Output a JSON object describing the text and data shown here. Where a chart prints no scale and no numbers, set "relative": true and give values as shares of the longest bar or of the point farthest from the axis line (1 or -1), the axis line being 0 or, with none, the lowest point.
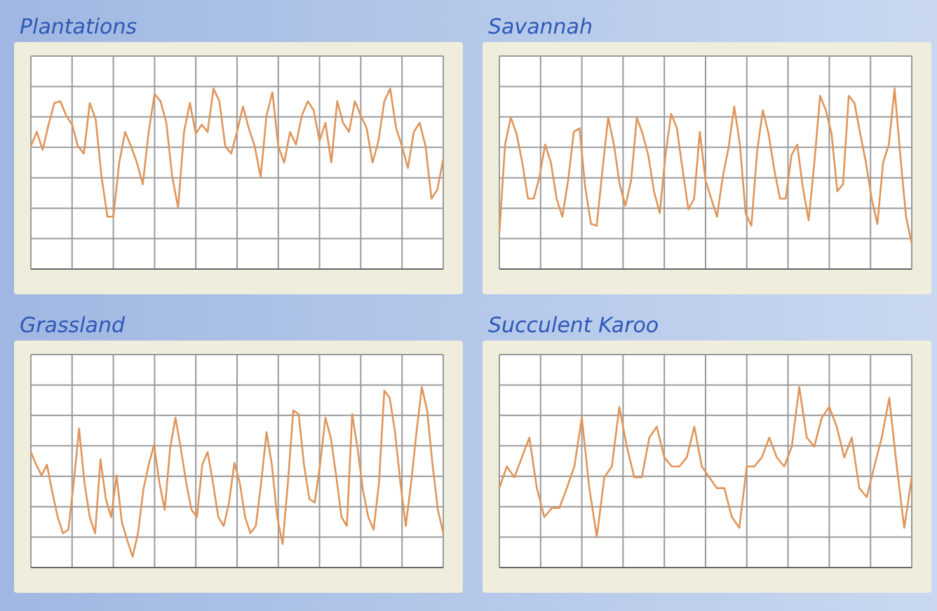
{
  "chart_data": [
    {
      "type": "line",
      "title": "Plantations",
      "relative": true,
      "grid": true,
      "categories": [
        null,
        null,
        null,
        null,
        null,
        null,
        null,
        null,
        null,
        null,
        null,
        null,
        null,
        null,
        null,
        null,
        null,
        null,
        null,
        null,
        null,
        null,
        null,
        null,
        null,
        null,
        null,
        null,
        null,
        null,
        null,
        null,
        null,
        null,
        null,
        null,
        null,
        null,
        null,
        null,
        null,
        null,
        null,
        null,
        null,
        null,
        null,
        null,
        null,
        null,
        null,
        null,
        null,
        null,
        null,
        null,
        null,
        null,
        null,
        null,
        null,
        null,
        null,
        null,
        null,
        null,
        null,
        null,
        null,
        null,
        null
      ],
      "series": [
        {
          "color": "#e0955a",
          "values": [
            0.68,
            0.76,
            0.66,
            0.8,
            0.92,
            0.93,
            0.85,
            0.8,
            0.68,
            0.64,
            0.92,
            0.83,
            0.51,
            0.29,
            0.29,
            0.59,
            0.76,
            0.68,
            0.59,
            0.47,
            0.76,
            0.97,
            0.93,
            0.81,
            0.51,
            0.34,
            0.76,
            0.92,
            0.75,
            0.8,
            0.76,
            1,
            0.93,
            0.68,
            0.64,
            0.76,
            0.9,
            0.78,
            0.68,
            0.51,
            0.85,
            0.98,
            0.68,
            0.59,
            0.76,
            0.69,
            0.85,
            0.93,
            0.88,
            0.71,
            0.81,
            0.59,
            0.93,
            0.81,
            0.76,
            0.93,
            0.85,
            0.78,
            0.59,
            0.71,
            0.93,
            1,
            0.78,
            0.68,
            0.56,
            0.76,
            0.81,
            0.68,
            0.39,
            0.44,
            0.61
          ]
        }
      ]
    },
    {
      "type": "line",
      "title": "Savannah",
      "relative": true,
      "grid": true,
      "categories": [
        null,
        null,
        null,
        null,
        null,
        null,
        null,
        null,
        null,
        null,
        null,
        null,
        null,
        null,
        null,
        null,
        null,
        null,
        null,
        null,
        null,
        null,
        null,
        null,
        null,
        null,
        null,
        null,
        null,
        null,
        null,
        null,
        null,
        null,
        null,
        null,
        null,
        null,
        null,
        null,
        null,
        null,
        null,
        null,
        null,
        null,
        null,
        null,
        null,
        null,
        null,
        null,
        null,
        null,
        null,
        null,
        null,
        null,
        null,
        null,
        null,
        null,
        null,
        null,
        null,
        null,
        null,
        null,
        null,
        null,
        null,
        null,
        null
      ],
      "series": [
        {
          "color": "#e0955a",
          "values": [
            0.2,
            0.69,
            0.84,
            0.75,
            0.59,
            0.39,
            0.39,
            0.51,
            0.69,
            0.59,
            0.39,
            0.29,
            0.49,
            0.76,
            0.78,
            0.45,
            0.25,
            0.24,
            0.55,
            0.84,
            0.69,
            0.47,
            0.35,
            0.49,
            0.84,
            0.75,
            0.63,
            0.43,
            0.31,
            0.63,
            0.86,
            0.78,
            0.55,
            0.33,
            0.39,
            0.76,
            0.49,
            0.39,
            0.29,
            0.51,
            0.67,
            0.9,
            0.69,
            0.31,
            0.24,
            0.65,
            0.88,
            0.75,
            0.55,
            0.39,
            0.39,
            0.63,
            0.69,
            0.45,
            0.27,
            0.59,
            0.96,
            0.88,
            0.75,
            0.43,
            0.47,
            0.96,
            0.92,
            0.75,
            0.59,
            0.39,
            0.25,
            0.59,
            0.69,
            1,
            0.63,
            0.29,
            0.14
          ]
        }
      ]
    },
    {
      "type": "line",
      "title": "Grassland",
      "relative": true,
      "grid": true,
      "categories": [
        null,
        null,
        null,
        null,
        null,
        null,
        null,
        null,
        null,
        null,
        null,
        null,
        null,
        null,
        null,
        null,
        null,
        null,
        null,
        null,
        null,
        null,
        null,
        null,
        null,
        null,
        null,
        null,
        null,
        null,
        null,
        null,
        null,
        null,
        null,
        null,
        null,
        null,
        null,
        null,
        null,
        null,
        null,
        null,
        null,
        null,
        null,
        null,
        null,
        null,
        null,
        null,
        null,
        null,
        null,
        null,
        null,
        null,
        null,
        null,
        null,
        null,
        null,
        null,
        null,
        null,
        null,
        null,
        null,
        null,
        null,
        null,
        null,
        null,
        null,
        null,
        null,
        null
      ],
      "series": [
        {
          "color": "#e0955a",
          "values": [
            0.64,
            0.57,
            0.51,
            0.57,
            0.42,
            0.28,
            0.19,
            0.21,
            0.47,
            0.77,
            0.47,
            0.28,
            0.19,
            0.6,
            0.38,
            0.28,
            0.51,
            0.25,
            0.15,
            0.06,
            0.19,
            0.43,
            0.57,
            0.68,
            0.47,
            0.32,
            0.66,
            0.83,
            0.66,
            0.47,
            0.32,
            0.28,
            0.57,
            0.64,
            0.47,
            0.28,
            0.23,
            0.36,
            0.58,
            0.47,
            0.28,
            0.19,
            0.23,
            0.47,
            0.75,
            0.57,
            0.28,
            0.13,
            0.47,
            0.87,
            0.85,
            0.57,
            0.38,
            0.36,
            0.57,
            0.83,
            0.72,
            0.51,
            0.28,
            0.23,
            0.85,
            0.66,
            0.43,
            0.28,
            0.21,
            0.47,
            0.98,
            0.94,
            0.75,
            0.47,
            0.23,
            0.47,
            0.75,
            1,
            0.87,
            0.57,
            0.32,
            0.19
          ]
        }
      ]
    },
    {
      "type": "line",
      "title": "Succulent Karoo",
      "relative": true,
      "grid": true,
      "categories": [
        null,
        null,
        null,
        null,
        null,
        null,
        null,
        null,
        null,
        null,
        null,
        null,
        null,
        null,
        null,
        null,
        null,
        null,
        null,
        null,
        null,
        null,
        null,
        null,
        null,
        null,
        null,
        null,
        null,
        null,
        null,
        null,
        null,
        null,
        null,
        null,
        null,
        null,
        null,
        null,
        null,
        null,
        null,
        null,
        null,
        null,
        null,
        null,
        null,
        null,
        null,
        null,
        null,
        null,
        null,
        null
      ],
      "series": [
        {
          "color": "#e0955a",
          "values": [
            0.44,
            0.56,
            0.5,
            0.61,
            0.72,
            0.44,
            0.28,
            0.33,
            0.33,
            0.44,
            0.56,
            0.83,
            0.44,
            0.17,
            0.5,
            0.56,
            0.89,
            0.67,
            0.5,
            0.5,
            0.72,
            0.78,
            0.61,
            0.56,
            0.56,
            0.61,
            0.78,
            0.56,
            0.5,
            0.44,
            0.44,
            0.28,
            0.22,
            0.56,
            0.56,
            0.61,
            0.72,
            0.61,
            0.56,
            0.67,
            1,
            0.72,
            0.67,
            0.83,
            0.89,
            0.78,
            0.61,
            0.72,
            0.44,
            0.39,
            0.56,
            0.72,
            0.94,
            0.56,
            0.22,
            0.5
          ]
        }
      ]
    }
  ]
}
